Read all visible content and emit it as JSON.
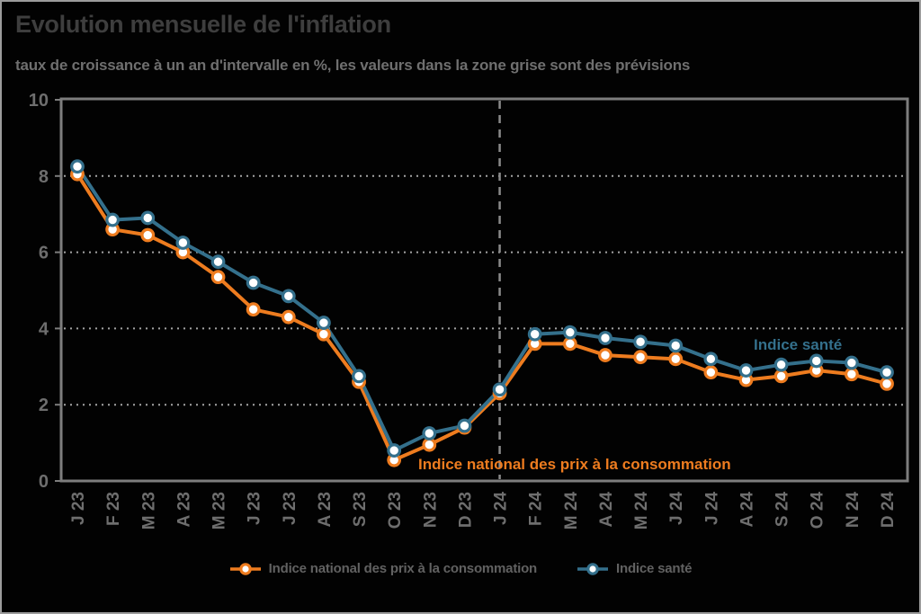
{
  "header": {
    "title": "Evolution mensuelle de l'inflation",
    "subtitle": "taux de croissance à un an d'intervalle en %, les valeurs dans la zone grise sont des prévisions"
  },
  "chart_data": {
    "type": "line",
    "categories": [
      "J 23",
      "F 23",
      "M 23",
      "A 23",
      "M 23",
      "J 23",
      "J 23",
      "A 23",
      "S 23",
      "O 23",
      "N 23",
      "D 23",
      "J 24",
      "F 24",
      "M 24",
      "A 24",
      "M 24",
      "J 24",
      "J 24",
      "A 24",
      "S 24",
      "O 24",
      "N 24",
      "D 24"
    ],
    "series": [
      {
        "name": "Indice national des prix à la consommation",
        "color": "#EE7C1F",
        "values": [
          8.05,
          6.6,
          6.45,
          6.0,
          5.35,
          4.5,
          4.3,
          3.85,
          2.6,
          0.55,
          0.95,
          1.4,
          2.3,
          3.6,
          3.6,
          3.3,
          3.25,
          3.2,
          2.85,
          2.65,
          2.75,
          2.9,
          2.8,
          2.55
        ]
      },
      {
        "name": "Indice santé",
        "color": "#34708C",
        "values": [
          8.25,
          6.85,
          6.9,
          6.25,
          5.75,
          5.2,
          4.85,
          4.15,
          2.75,
          0.8,
          1.25,
          1.45,
          2.4,
          3.85,
          3.9,
          3.75,
          3.65,
          3.55,
          3.2,
          2.9,
          3.05,
          3.15,
          3.1,
          2.85
        ]
      }
    ],
    "ylim": [
      0,
      10
    ],
    "yticks": [
      0,
      2,
      4,
      6,
      8,
      10
    ],
    "grid": "horizontal-dotted",
    "legend_position": "bottom",
    "forecast_divider_index": 12,
    "forecast_divider_category": "J 24",
    "annotations": [
      {
        "text": "Indice national des prix à la consommation",
        "series": "cpi"
      },
      {
        "text": "Indice santé",
        "series": "sante"
      }
    ]
  },
  "colors": {
    "background": "#020202",
    "cpi_orange": "#EE7C1F",
    "sante_blue": "#34708C",
    "title_gray": "#3e3e3e",
    "subtitle_gray": "#6f6f6f",
    "axis_gray": "#6e6e6e",
    "frame_gray": "#7d7d7d"
  }
}
